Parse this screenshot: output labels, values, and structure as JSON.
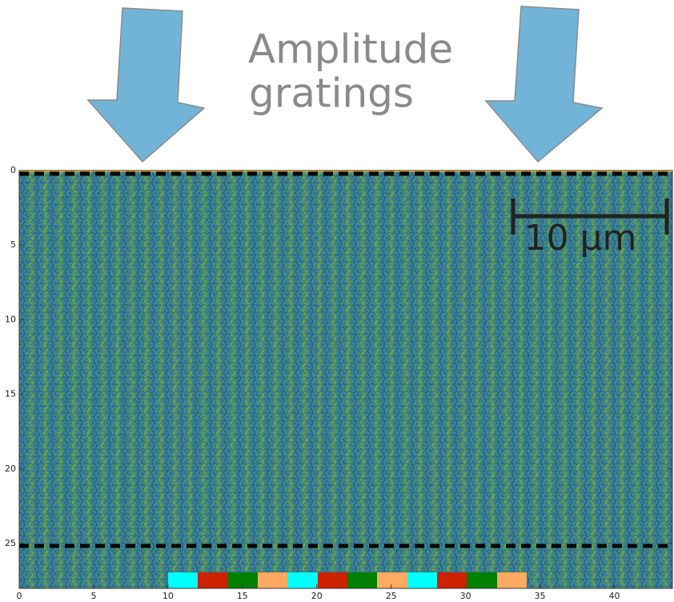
{
  "chart_data": {
    "type": "heatmap",
    "annotation": [
      "Amplitude",
      "gratings"
    ],
    "scale_bar_label": "10 µm",
    "xlim": [
      0,
      43.9
    ],
    "ylim": [
      0,
      28
    ],
    "xticks": [
      0,
      5,
      10,
      15,
      20,
      25,
      30,
      35,
      40
    ],
    "yticks": [
      0,
      5,
      10,
      15,
      20,
      25
    ]
  }
}
